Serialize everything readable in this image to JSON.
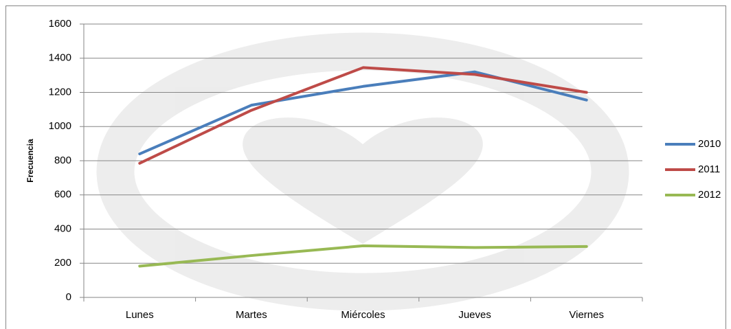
{
  "chart_data": {
    "type": "line",
    "y_label": "Frecuencia",
    "categories": [
      "Lunes",
      "Martes",
      "Miércoles",
      "Jueves",
      "Viernes"
    ],
    "series": [
      {
        "name": "2010",
        "color": "#4a7ebb",
        "values": [
          840,
          1125,
          1235,
          1320,
          1155
        ]
      },
      {
        "name": "2011",
        "color": "#be4b48",
        "values": [
          785,
          1095,
          1345,
          1305,
          1200
        ]
      },
      {
        "name": "2012",
        "color": "#98b954",
        "values": [
          183,
          245,
          302,
          292,
          298
        ]
      }
    ],
    "ylim": [
      0,
      1600
    ],
    "yticks": [
      0,
      200,
      400,
      600,
      800,
      1000,
      1200,
      1400,
      1600
    ],
    "grid": true,
    "legend": "right"
  }
}
